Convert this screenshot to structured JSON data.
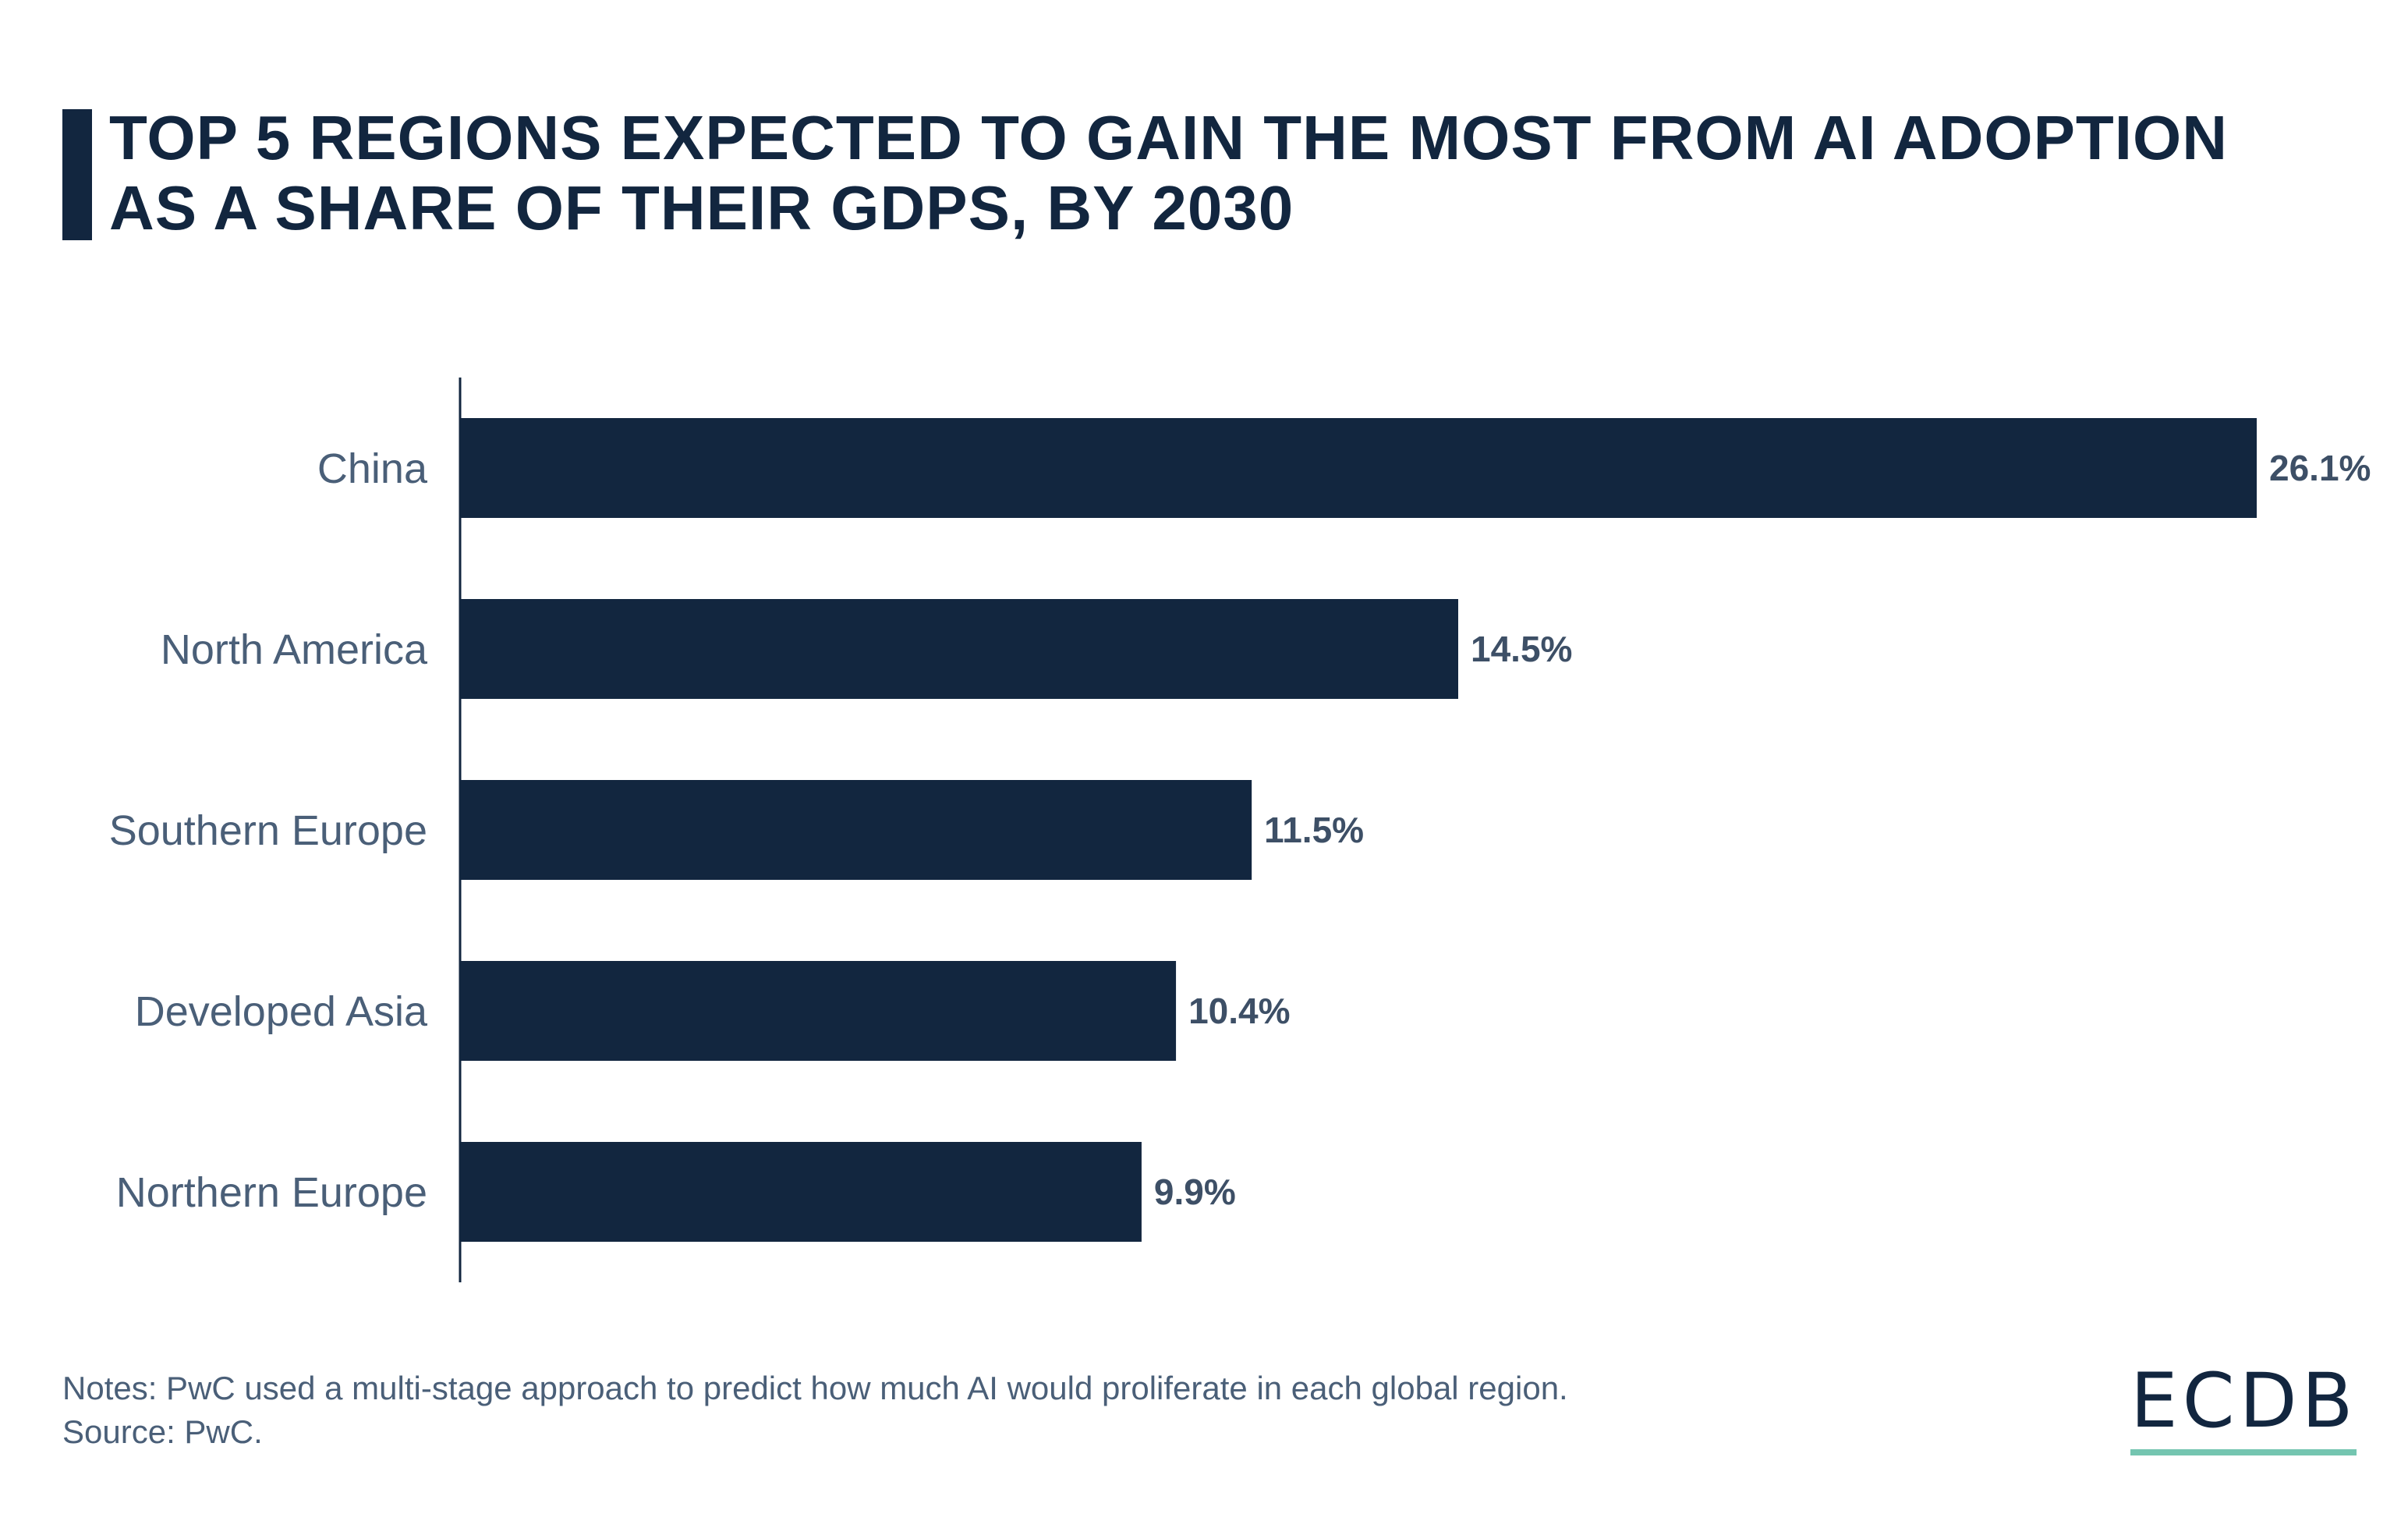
{
  "title": "TOP 5 REGIONS EXPECTED TO GAIN THE MOST FROM AI ADOPTION AS A SHARE OF THEIR GDPS, BY 2030",
  "title_lines": [
    "TOP 5 REGIONS EXPECTED TO GAIN THE MOST FROM AI ADOPTION",
    "AS A SHARE OF THEIR GDPS, BY 2030"
  ],
  "notes": "Notes: PwC used a multi-stage approach to predict how much AI would proliferate in each global region.",
  "source": "Source: PwC.",
  "logo": "ECDB",
  "colors": {
    "bar": "#12263f",
    "label": "#4a5f78",
    "value_label": "#3d4f66",
    "logo_accent": "#74c5b0"
  },
  "chart_data": {
    "type": "bar",
    "orientation": "horizontal",
    "categories": [
      "China",
      "North America",
      "Southern Europe",
      "Developed Asia",
      "Northern Europe"
    ],
    "values": [
      26.1,
      14.5,
      11.5,
      10.4,
      9.9
    ],
    "value_labels": [
      "26.1%",
      "14.5%",
      "11.5%",
      "10.4%",
      "9.9%"
    ],
    "xlabel": "",
    "ylabel": "",
    "xlim": [
      0,
      26.1
    ],
    "grid": false
  }
}
